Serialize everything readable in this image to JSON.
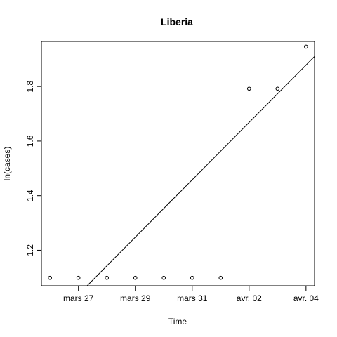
{
  "chart_data": {
    "type": "scatter",
    "title": "Liberia",
    "xlabel": "Time",
    "ylabel": "ln(cases)",
    "x_tick_labels": [
      "mars 27",
      "mars 29",
      "mars 31",
      "avr. 02",
      "avr. 04"
    ],
    "x_tick_dates": [
      "2014-03-27",
      "2014-03-29",
      "2014-03-31",
      "2014-04-02",
      "2014-04-04"
    ],
    "y_ticks": [
      1.2,
      1.4,
      1.6,
      1.8
    ],
    "y_tick_labels": [
      "1.2",
      "1.4",
      "1.6",
      "1.8"
    ],
    "xlim": [
      "2014-03-25 16:48",
      "2014-04-04 07:12"
    ],
    "ylim": [
      1.07,
      1.965
    ],
    "points": [
      {
        "x": "2014-03-26",
        "y": 1.099
      },
      {
        "x": "2014-03-27",
        "y": 1.099
      },
      {
        "x": "2014-03-28",
        "y": 1.099
      },
      {
        "x": "2014-03-29",
        "y": 1.099
      },
      {
        "x": "2014-03-30",
        "y": 1.099
      },
      {
        "x": "2014-03-31",
        "y": 1.099
      },
      {
        "x": "2014-04-01",
        "y": 1.099
      },
      {
        "x": "2014-04-02",
        "y": 1.792
      },
      {
        "x": "2014-04-03",
        "y": 1.792
      },
      {
        "x": "2014-04-04",
        "y": 1.946
      }
    ],
    "fit_line": {
      "slope_per_day": 0.1051,
      "intercept_at": "2014-03-26",
      "intercept": 0.9326
    },
    "grid": false,
    "legend": "none"
  }
}
